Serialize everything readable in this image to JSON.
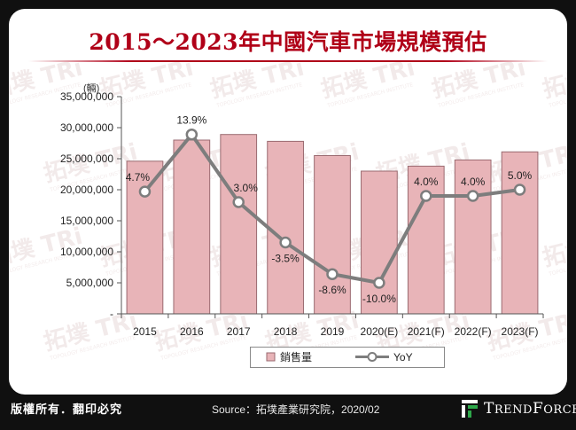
{
  "title": "2015～2023年中國汽車市場規模預估",
  "chart_data": {
    "type": "bar+line",
    "unit_label": "(輛)",
    "categories": [
      "2015",
      "2016",
      "2017",
      "2018",
      "2019",
      "2020(E)",
      "2021(F)",
      "2022(F)",
      "2023(F)"
    ],
    "series": [
      {
        "name": "銷售量",
        "type": "bar",
        "axis": "left",
        "color": "#e8b4b8",
        "edge": "#9a6a70",
        "values": [
          24600000,
          28000000,
          28900000,
          27800000,
          25500000,
          23000000,
          23800000,
          24800000,
          26100000
        ]
      },
      {
        "name": "YoY",
        "type": "line",
        "axis": "right-hidden",
        "color": "#7d7d7d",
        "values": [
          4.7,
          13.9,
          3.0,
          -3.5,
          -8.6,
          -10.0,
          4.0,
          4.0,
          5.0
        ],
        "labels": [
          "4.7%",
          "13.9%",
          "3.0%",
          "-3.5%",
          "-8.6%",
          "-10.0%",
          "4.0%",
          "4.0%",
          "5.0%"
        ]
      }
    ],
    "y_axis": {
      "min": 0,
      "max": 35000000,
      "step": 5000000,
      "tick_labels": [
        "-",
        "5,000,000",
        "10,000,000",
        "15,000,000",
        "20,000,000",
        "25,000,000",
        "30,000,000",
        "35,000,000"
      ]
    },
    "yoy_range": [
      -15,
      20
    ],
    "legend": {
      "position": "bottom",
      "items": [
        "銷售量",
        "YoY"
      ]
    }
  },
  "watermark": {
    "text": "拓墣",
    "brand": "TRi",
    "sub": "TOPOLOGY RESEARCH INSTITUTE"
  },
  "footer": {
    "rights": "版權所有．翻印必究",
    "source": "Source：拓墣產業研究院，2020/02",
    "brand": "TrendForce"
  }
}
